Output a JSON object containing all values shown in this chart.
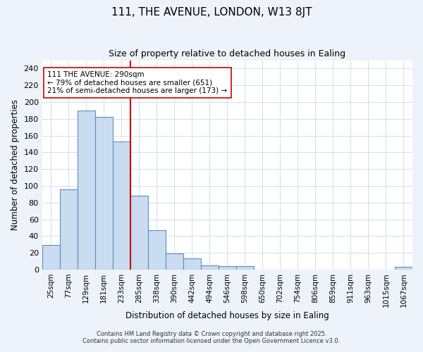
{
  "title": "111, THE AVENUE, LONDON, W13 8JT",
  "subtitle": "Size of property relative to detached houses in Ealing",
  "xlabel": "Distribution of detached houses by size in Ealing",
  "ylabel": "Number of detached properties",
  "bin_labels": [
    "25sqm",
    "77sqm",
    "129sqm",
    "181sqm",
    "233sqm",
    "285sqm",
    "338sqm",
    "390sqm",
    "442sqm",
    "494sqm",
    "546sqm",
    "598sqm",
    "650sqm",
    "702sqm",
    "754sqm",
    "806sqm",
    "859sqm",
    "911sqm",
    "963sqm",
    "1015sqm",
    "1067sqm"
  ],
  "bar_values": [
    29,
    96,
    190,
    182,
    153,
    88,
    47,
    19,
    13,
    5,
    4,
    4,
    0,
    0,
    0,
    0,
    0,
    0,
    0,
    0,
    3
  ],
  "bar_color": "#c9dcf0",
  "bar_edge_color": "#5a8fc3",
  "vline_x": 5,
  "vline_color": "#cc0000",
  "annotation_text": "111 THE AVENUE: 290sqm\n← 79% of detached houses are smaller (651)\n21% of semi-detached houses are larger (173) →",
  "annotation_box_color": "#ffffff",
  "annotation_box_edge": "#cc0000",
  "ylim": [
    0,
    250
  ],
  "yticks": [
    0,
    20,
    40,
    60,
    80,
    100,
    120,
    140,
    160,
    180,
    200,
    220,
    240
  ],
  "footer_line1": "Contains HM Land Registry data © Crown copyright and database right 2025.",
  "footer_line2": "Contains public sector information licensed under the Open Government Licence v3.0.",
  "bg_color": "#eef2fa",
  "plot_bg_color": "#ffffff",
  "grid_color": "#ccd8ea"
}
